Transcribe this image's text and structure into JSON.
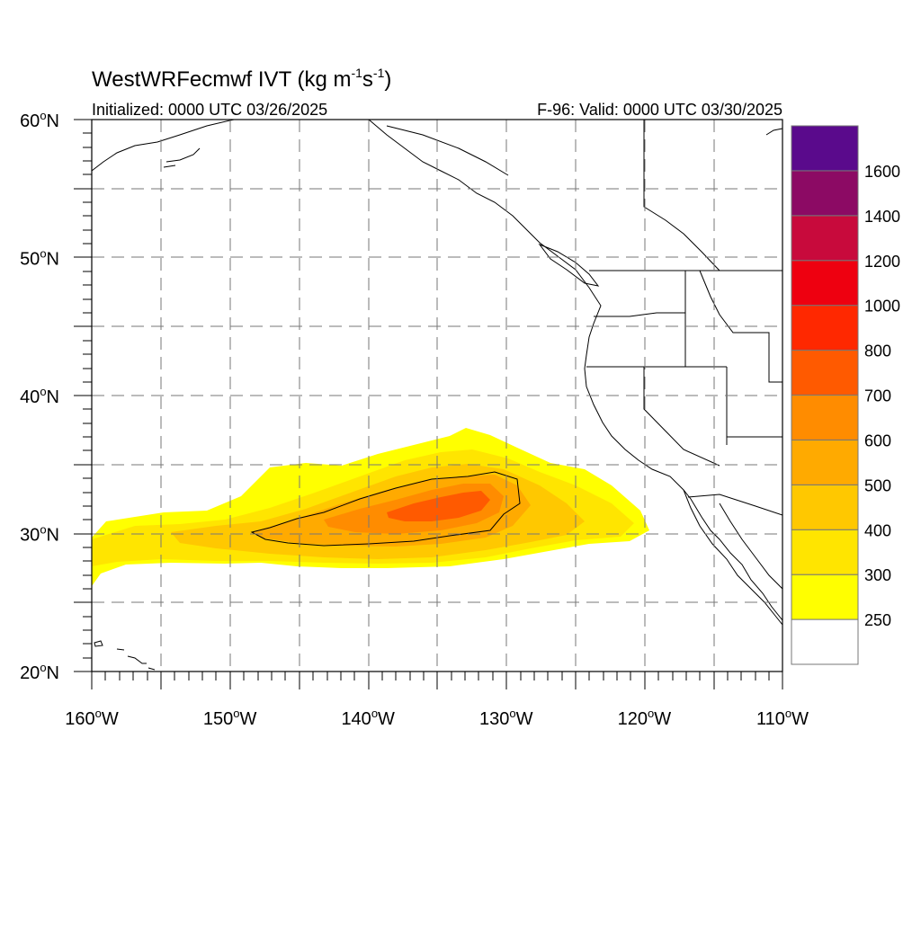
{
  "title": {
    "main": "WestWRFecmwf IVT (kg m",
    "sup1": "-1",
    "mid": "s",
    "sup2": "-1",
    "end": ")"
  },
  "initialized": "Initialized: 0000 UTC 03/26/2025",
  "valid": "F-96: Valid: 0000 UTC 03/30/2025",
  "map": {
    "lon_range": [
      -160,
      -110
    ],
    "lat_range": [
      20,
      60
    ],
    "grid_lines": "dashed",
    "lon_ticks": [
      {
        "num": "160",
        "hemi": "W"
      },
      {
        "num": "150",
        "hemi": "W"
      },
      {
        "num": "140",
        "hemi": "W"
      },
      {
        "num": "130",
        "hemi": "W"
      },
      {
        "num": "120",
        "hemi": "W"
      },
      {
        "num": "110",
        "hemi": "W"
      }
    ],
    "lat_ticks": [
      {
        "num": "60",
        "hemi": "N"
      },
      {
        "num": "50",
        "hemi": "N"
      },
      {
        "num": "40",
        "hemi": "N"
      },
      {
        "num": "30",
        "hemi": "N"
      },
      {
        "num": "20",
        "hemi": "N"
      }
    ]
  },
  "colorbar": {
    "levels": [
      {
        "label": "",
        "color": "#ffffff"
      },
      {
        "label": "250",
        "color": "#ffff00"
      },
      {
        "label": "300",
        "color": "#ffe500"
      },
      {
        "label": "400",
        "color": "#ffc800"
      },
      {
        "label": "500",
        "color": "#ffaa00"
      },
      {
        "label": "600",
        "color": "#ff8c00"
      },
      {
        "label": "700",
        "color": "#ff5a00"
      },
      {
        "label": "800",
        "color": "#ff2800"
      },
      {
        "label": "1000",
        "color": "#ee0010"
      },
      {
        "label": "1200",
        "color": "#c80a3c"
      },
      {
        "label": "1400",
        "color": "#8c0a64"
      },
      {
        "label": "1600",
        "color": "#5a0a8c"
      }
    ]
  },
  "ivt_field": {
    "feature": "atmospheric river",
    "core_center_lon": -135,
    "core_center_lat": 31.5,
    "max_shaded_label": "700",
    "contour_highlighted": "500"
  }
}
